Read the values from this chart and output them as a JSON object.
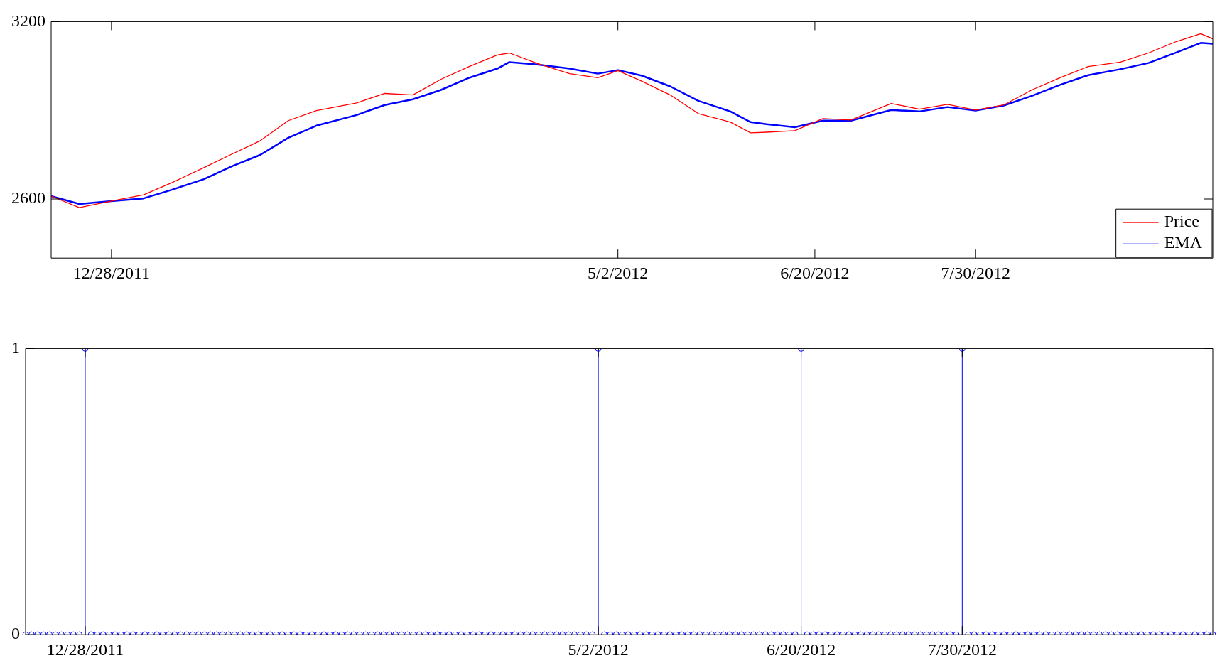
{
  "chart_data": [
    {
      "type": "line",
      "xlim": [
        "2011-12-13",
        "2012-09-27"
      ],
      "xticks": [
        {
          "value": "2011-12-28",
          "label": "12/28/2011"
        },
        {
          "value": "2012-05-02",
          "label": "5/2/2012"
        },
        {
          "value": "2012-06-20",
          "label": "6/20/2012"
        },
        {
          "value": "2012-07-30",
          "label": "7/30/2012"
        }
      ],
      "ylim": [
        2400,
        3200
      ],
      "yticks": [
        2600,
        3200
      ],
      "legend": "bottom right",
      "marker": "none",
      "line_style": "solid",
      "x": [
        "2011-12-13",
        "2011-12-20",
        "2011-12-28",
        "2012-01-05",
        "2012-01-12",
        "2012-01-20",
        "2012-01-27",
        "2012-02-03",
        "2012-02-10",
        "2012-02-17",
        "2012-02-27",
        "2012-03-05",
        "2012-03-12",
        "2012-03-19",
        "2012-03-26",
        "2012-04-02",
        "2012-04-05",
        "2012-04-12",
        "2012-04-20",
        "2012-04-27",
        "2012-05-02",
        "2012-05-08",
        "2012-05-15",
        "2012-05-22",
        "2012-05-30",
        "2012-06-04",
        "2012-06-08",
        "2012-06-15",
        "2012-06-22",
        "2012-06-29",
        "2012-07-09",
        "2012-07-16",
        "2012-07-23",
        "2012-07-30",
        "2012-08-06",
        "2012-08-13",
        "2012-08-20",
        "2012-08-27",
        "2012-09-04",
        "2012-09-11",
        "2012-09-18",
        "2012-09-24",
        "2012-09-27"
      ],
      "series": [
        {
          "name": "Price",
          "color": "#ff0000",
          "values": [
            2610,
            2571,
            2593,
            2614,
            2655,
            2706,
            2752,
            2797,
            2865,
            2899,
            2925,
            2957,
            2952,
            3005,
            3048,
            3087,
            3094,
            3058,
            3024,
            3010,
            3034,
            2998,
            2952,
            2889,
            2860,
            2824,
            2826,
            2831,
            2872,
            2867,
            2923,
            2904,
            2920,
            2901,
            2918,
            2969,
            3010,
            3048,
            3063,
            3094,
            3133,
            3159,
            3142
          ]
        },
        {
          "name": "EMA",
          "color": "#0000ff",
          "values": [
            2610,
            2583,
            2593,
            2602,
            2631,
            2667,
            2711,
            2749,
            2807,
            2848,
            2884,
            2918,
            2937,
            2969,
            3010,
            3041,
            3063,
            3055,
            3041,
            3024,
            3036,
            3017,
            2981,
            2932,
            2896,
            2860,
            2853,
            2843,
            2865,
            2865,
            2901,
            2896,
            2911,
            2899,
            2916,
            2949,
            2986,
            3019,
            3039,
            3060,
            3096,
            3128,
            3125
          ]
        }
      ]
    },
    {
      "type": "lollipop",
      "marker": "circle",
      "ylim": [
        0,
        1
      ],
      "yticks": [
        0,
        1
      ],
      "categories": [
        null,
        null,
        null,
        null,
        null,
        null,
        null,
        null,
        null,
        null,
        "12/28/2011",
        null,
        null,
        null,
        null,
        null,
        null,
        null,
        null,
        null,
        null,
        null,
        null,
        null,
        null,
        null,
        null,
        null,
        null,
        null,
        null,
        null,
        null,
        null,
        null,
        null,
        null,
        null,
        null,
        null,
        null,
        null,
        null,
        null,
        null,
        null,
        null,
        null,
        null,
        null,
        null,
        null,
        null,
        null,
        null,
        null,
        null,
        null,
        null,
        null,
        null,
        null,
        null,
        null,
        null,
        null,
        null,
        null,
        null,
        null,
        null,
        null,
        null,
        null,
        null,
        null,
        null,
        null,
        null,
        null,
        null,
        null,
        null,
        null,
        null,
        null,
        null,
        null,
        null,
        null,
        null,
        null,
        null,
        null,
        null,
        null,
        "5/2/2012",
        null,
        null,
        null,
        null,
        null,
        null,
        null,
        null,
        null,
        null,
        null,
        null,
        null,
        null,
        null,
        null,
        null,
        null,
        null,
        null,
        null,
        null,
        null,
        null,
        null,
        null,
        null,
        null,
        null,
        null,
        null,
        null,
        null,
        "6/20/2012",
        null,
        null,
        null,
        null,
        null,
        null,
        null,
        null,
        null,
        null,
        null,
        null,
        null,
        null,
        null,
        null,
        null,
        null,
        null,
        null,
        null,
        null,
        null,
        null,
        null,
        null,
        "7/30/2012",
        null,
        null,
        null,
        null,
        null,
        null,
        null,
        null,
        null,
        null,
        null,
        null,
        null,
        null,
        null,
        null,
        null,
        null,
        null,
        null,
        null,
        null,
        null,
        null,
        null,
        null,
        null,
        null,
        null,
        null,
        null,
        null,
        null,
        null,
        null,
        null,
        null,
        null,
        null,
        null,
        null,
        null
      ],
      "series": [
        {
          "color": "#0000ff",
          "values": [
            0,
            0,
            0,
            0,
            0,
            0,
            0,
            0,
            0,
            0,
            1,
            0,
            0,
            0,
            0,
            0,
            0,
            0,
            0,
            0,
            0,
            0,
            0,
            0,
            0,
            0,
            0,
            0,
            0,
            0,
            0,
            0,
            0,
            0,
            0,
            0,
            0,
            0,
            0,
            0,
            0,
            0,
            0,
            0,
            0,
            0,
            0,
            0,
            0,
            0,
            0,
            0,
            0,
            0,
            0,
            0,
            0,
            0,
            0,
            0,
            0,
            0,
            0,
            0,
            0,
            0,
            0,
            0,
            0,
            0,
            0,
            0,
            0,
            0,
            0,
            0,
            0,
            0,
            0,
            0,
            0,
            0,
            0,
            0,
            0,
            0,
            0,
            0,
            0,
            0,
            0,
            0,
            0,
            0,
            0,
            0,
            1,
            0,
            0,
            0,
            0,
            0,
            0,
            0,
            0,
            0,
            0,
            0,
            0,
            0,
            0,
            0,
            0,
            0,
            0,
            0,
            0,
            0,
            0,
            0,
            0,
            0,
            0,
            0,
            0,
            0,
            0,
            0,
            0,
            0,
            1,
            0,
            0,
            0,
            0,
            0,
            0,
            0,
            0,
            0,
            0,
            0,
            0,
            0,
            0,
            0,
            0,
            0,
            0,
            0,
            0,
            0,
            0,
            0,
            0,
            0,
            0,
            1,
            0,
            0,
            0,
            0,
            0,
            0,
            0,
            0,
            0,
            0,
            0,
            0,
            0,
            0,
            0,
            0,
            0,
            0,
            0,
            0,
            0,
            0,
            0,
            0,
            0,
            0,
            0,
            0,
            0,
            0,
            0,
            0,
            0,
            0,
            0,
            0,
            0,
            0,
            0,
            0,
            0,
            0
          ]
        }
      ]
    }
  ]
}
